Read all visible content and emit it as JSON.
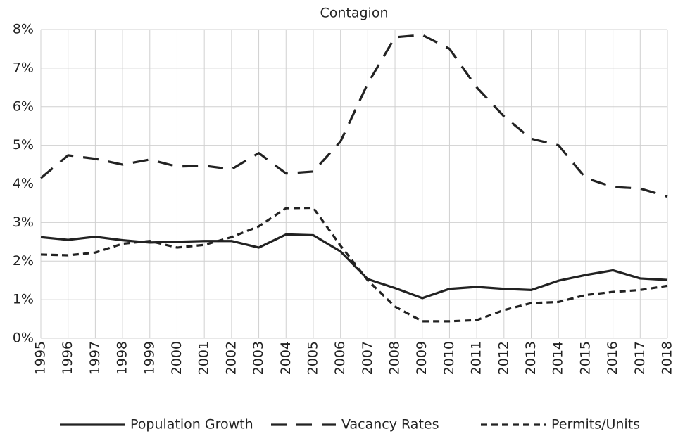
{
  "chart_data": {
    "type": "line",
    "title": "Contagion",
    "categories": [
      "1995",
      "1996",
      "1997",
      "1998",
      "1999",
      "2000",
      "2001",
      "2002",
      "2003",
      "2004",
      "2005",
      "2006",
      "2007",
      "2008",
      "2009",
      "2010",
      "2011",
      "2012",
      "2013",
      "2014",
      "2015",
      "2016",
      "2017",
      "2018"
    ],
    "series": [
      {
        "name": "Population Growth",
        "color": "#222222",
        "style": "solid",
        "values": [
          2.62,
          2.55,
          2.63,
          2.54,
          2.48,
          2.5,
          2.52,
          2.52,
          2.35,
          2.69,
          2.67,
          2.25,
          1.53,
          1.3,
          1.04,
          1.28,
          1.33,
          1.28,
          1.25,
          1.49,
          1.64,
          1.76,
          1.55,
          1.51
        ]
      },
      {
        "name": "Vacancy Rates",
        "color": "#222222",
        "style": "long-dash",
        "values": [
          4.15,
          4.74,
          4.65,
          4.5,
          4.63,
          4.45,
          4.47,
          4.38,
          4.8,
          4.27,
          4.32,
          5.1,
          6.6,
          7.8,
          7.86,
          7.5,
          6.5,
          5.75,
          5.17,
          5.0,
          4.15,
          3.92,
          3.88,
          3.67
        ]
      },
      {
        "name": "Permits/Units",
        "color": "#222222",
        "style": "short-dash",
        "values": [
          2.17,
          2.15,
          2.22,
          2.45,
          2.52,
          2.35,
          2.42,
          2.62,
          2.9,
          3.37,
          3.38,
          2.4,
          1.5,
          0.82,
          0.44,
          0.44,
          0.47,
          0.73,
          0.91,
          0.94,
          1.12,
          1.2,
          1.25,
          1.36
        ]
      }
    ],
    "ylim": [
      0,
      8
    ],
    "yticks": [
      {
        "value": 0,
        "label": "0%"
      },
      {
        "value": 1,
        "label": "1%"
      },
      {
        "value": 2,
        "label": "2%"
      },
      {
        "value": 3,
        "label": "3%"
      },
      {
        "value": 4,
        "label": "4%"
      },
      {
        "value": 5,
        "label": "5%"
      },
      {
        "value": 6,
        "label": "6%"
      },
      {
        "value": 7,
        "label": "7%"
      },
      {
        "value": 8,
        "label": "8%"
      }
    ],
    "grid": true,
    "legend": "bottom"
  }
}
